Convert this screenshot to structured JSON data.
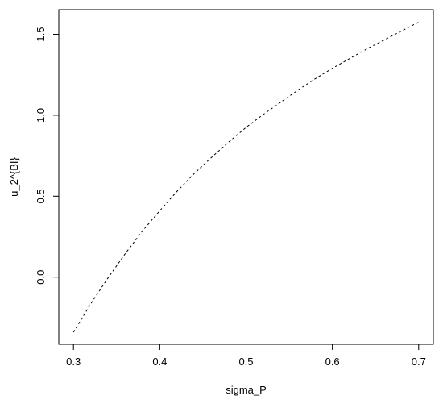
{
  "chart_data": {
    "type": "line",
    "title": "",
    "xlabel": "sigma_P",
    "ylabel": "u_2^{BI}",
    "xlim": [
      0.283,
      0.717
    ],
    "ylim": [
      -0.415,
      1.652
    ],
    "xticks": [
      0.3,
      0.4,
      0.5,
      0.6,
      0.7
    ],
    "xtick_labels": [
      "0.3",
      "0.4",
      "0.5",
      "0.6",
      "0.7"
    ],
    "yticks": [
      0.0,
      0.5,
      1.0,
      1.5
    ],
    "ytick_labels": [
      "0.0",
      "0.5",
      "1.0",
      "1.5"
    ],
    "grid": false,
    "line_style": "dashed",
    "line_color": "#000000",
    "series": [
      {
        "x": [
          0.3,
          0.32,
          0.34,
          0.36,
          0.38,
          0.4,
          0.42,
          0.44,
          0.46,
          0.48,
          0.5,
          0.52,
          0.54,
          0.56,
          0.58,
          0.6,
          0.62,
          0.64,
          0.66,
          0.68,
          0.7
        ],
        "y": [
          -0.34,
          -0.165,
          -0.005,
          0.145,
          0.285,
          0.41,
          0.53,
          0.64,
          0.74,
          0.835,
          0.925,
          1.005,
          1.08,
          1.155,
          1.225,
          1.29,
          1.35,
          1.41,
          1.465,
          1.52,
          1.575
        ]
      }
    ]
  }
}
